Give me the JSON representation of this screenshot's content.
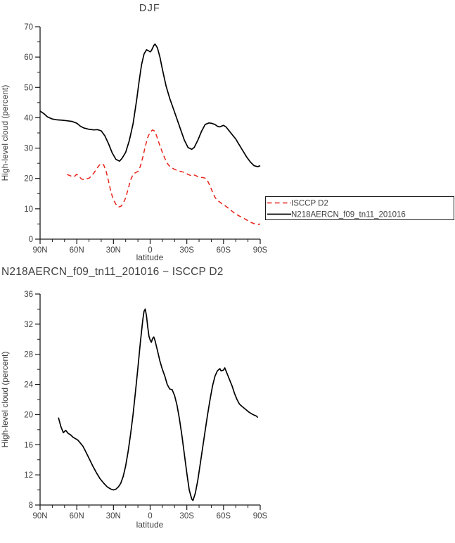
{
  "colors": {
    "text": "#3f3f3f",
    "axis": "#1a1a1a",
    "model_line": "#000000",
    "obs_line": "#e8231a"
  },
  "legend": {
    "entries": [
      "ISCCP D2",
      "N218AERCN_f09_tn11_201016"
    ],
    "position": "right-outside"
  },
  "chart_data": [
    {
      "type": "line",
      "title": "DJF",
      "xlabel": "latitude",
      "ylabel": "High-level cloud (percent)",
      "ylim": [
        0,
        70
      ],
      "yticks": [
        0,
        10,
        20,
        30,
        40,
        50,
        60,
        70
      ],
      "xlim": [
        90,
        -90
      ],
      "xticks": [
        90,
        60,
        30,
        0,
        -30,
        -60,
        -90
      ],
      "xtick_labels": [
        "90N",
        "60N",
        "30N",
        "0",
        "30S",
        "60S",
        "90S"
      ],
      "grid": false,
      "legend_position": "right-outside",
      "series": [
        {
          "name": "ISCCP D2",
          "color": "#e8231a",
          "style": "dashed",
          "points": [
            [
              68,
              21.3
            ],
            [
              66,
              21.0
            ],
            [
              64,
              20.7
            ],
            [
              62,
              20.6
            ],
            [
              60,
              21.4
            ],
            [
              58,
              20.6
            ],
            [
              56,
              19.8
            ],
            [
              54,
              19.6
            ],
            [
              52,
              19.9
            ],
            [
              50,
              20.1
            ],
            [
              48,
              20.8
            ],
            [
              46,
              21.8
            ],
            [
              44,
              23.0
            ],
            [
              42,
              24.2
            ],
            [
              40,
              24.9
            ],
            [
              38,
              24.5
            ],
            [
              36,
              22.4
            ],
            [
              34,
              19.0
            ],
            [
              32,
              15.4
            ],
            [
              30,
              13.0
            ],
            [
              28,
              11.5
            ],
            [
              26,
              10.6
            ],
            [
              24,
              10.8
            ],
            [
              22,
              11.8
            ],
            [
              20,
              13.6
            ],
            [
              18,
              16.5
            ],
            [
              16,
              19.5
            ],
            [
              14,
              21.3
            ],
            [
              12,
              21.9
            ],
            [
              10,
              22.3
            ],
            [
              8,
              24.0
            ],
            [
              6,
              27.0
            ],
            [
              4,
              30.5
            ],
            [
              2,
              33.5
            ],
            [
              0,
              35.3
            ],
            [
              -2,
              36.0
            ],
            [
              -4,
              35.5
            ],
            [
              -6,
              33.2
            ],
            [
              -8,
              30.8
            ],
            [
              -10,
              28.6
            ],
            [
              -12,
              26.6
            ],
            [
              -14,
              25.0
            ],
            [
              -16,
              24.0
            ],
            [
              -18,
              23.4
            ],
            [
              -20,
              23.0
            ],
            [
              -23,
              22.5
            ],
            [
              -26,
              22.2
            ],
            [
              -29,
              21.9
            ],
            [
              -31,
              21.3
            ],
            [
              -33,
              21.0
            ],
            [
              -35,
              21.3
            ],
            [
              -37,
              21.0
            ],
            [
              -39,
              20.6
            ],
            [
              -41,
              20.3
            ],
            [
              -43,
              20.3
            ],
            [
              -45,
              20.1
            ],
            [
              -47,
              19.2
            ],
            [
              -49,
              17.5
            ],
            [
              -51,
              15.5
            ],
            [
              -53,
              13.8
            ],
            [
              -55,
              12.8
            ],
            [
              -57,
              12.2
            ],
            [
              -59,
              11.6
            ],
            [
              -61,
              11.1
            ],
            [
              -64,
              10.2
            ],
            [
              -67,
              9.2
            ],
            [
              -70,
              8.3
            ],
            [
              -73,
              7.6
            ],
            [
              -76,
              7.0
            ],
            [
              -79,
              6.3
            ],
            [
              -82,
              5.6
            ],
            [
              -85,
              5.1
            ],
            [
              -88,
              4.8
            ],
            [
              -90,
              5.0
            ]
          ]
        },
        {
          "name": "N218AERCN_f09_tn11_201016",
          "color": "#000000",
          "style": "solid",
          "points": [
            [
              90,
              42.2
            ],
            [
              87,
              41.4
            ],
            [
              84,
              40.3
            ],
            [
              80,
              39.6
            ],
            [
              76,
              39.3
            ],
            [
              72,
              39.2
            ],
            [
              68,
              39.0
            ],
            [
              64,
              38.8
            ],
            [
              60,
              38.2
            ],
            [
              57,
              37.2
            ],
            [
              54,
              36.6
            ],
            [
              50,
              36.2
            ],
            [
              46,
              36.0
            ],
            [
              43,
              36.1
            ],
            [
              40,
              35.7
            ],
            [
              37,
              34.0
            ],
            [
              34,
              31.4
            ],
            [
              31,
              28.4
            ],
            [
              28,
              26.3
            ],
            [
              25,
              25.7
            ],
            [
              23,
              26.6
            ],
            [
              20,
              28.6
            ],
            [
              17,
              32.5
            ],
            [
              14,
              38.0
            ],
            [
              11,
              46.0
            ],
            [
              9,
              52.0
            ],
            [
              7,
              57.5
            ],
            [
              5,
              61.0
            ],
            [
              3,
              62.4
            ],
            [
              1,
              62.0
            ],
            [
              0,
              61.7
            ],
            [
              -1,
              62.1
            ],
            [
              -3,
              63.8
            ],
            [
              -4,
              64.3
            ],
            [
              -6,
              63.0
            ],
            [
              -8,
              60.0
            ],
            [
              -10,
              56.0
            ],
            [
              -13,
              50.5
            ],
            [
              -16,
              46.4
            ],
            [
              -19,
              43.0
            ],
            [
              -22,
              39.5
            ],
            [
              -25,
              36.0
            ],
            [
              -28,
              32.6
            ],
            [
              -31,
              30.2
            ],
            [
              -34,
              29.6
            ],
            [
              -36,
              30.2
            ],
            [
              -39,
              32.6
            ],
            [
              -42,
              35.5
            ],
            [
              -45,
              37.8
            ],
            [
              -48,
              38.3
            ],
            [
              -50,
              38.2
            ],
            [
              -53,
              37.8
            ],
            [
              -55,
              37.2
            ],
            [
              -57,
              37.0
            ],
            [
              -60,
              37.5
            ],
            [
              -62,
              37.0
            ],
            [
              -64,
              36.0
            ],
            [
              -67,
              34.5
            ],
            [
              -70,
              33.0
            ],
            [
              -73,
              31.0
            ],
            [
              -76,
              29.0
            ],
            [
              -79,
              27.0
            ],
            [
              -82,
              25.4
            ],
            [
              -85,
              24.2
            ],
            [
              -88,
              23.9
            ],
            [
              -90,
              24.2
            ]
          ]
        }
      ]
    },
    {
      "type": "line",
      "title": "N218AERCN_f09_tn11_201016 − ISCCP D2",
      "xlabel": "latitude",
      "ylabel": "High-level cloud (percent)",
      "ylim": [
        8,
        36
      ],
      "yticks": [
        8,
        12,
        16,
        20,
        24,
        28,
        32,
        36
      ],
      "xlim": [
        90,
        -90
      ],
      "xticks": [
        90,
        60,
        30,
        0,
        -30,
        -60,
        -90
      ],
      "xtick_labels": [
        "90N",
        "60N",
        "30N",
        "0",
        "30S",
        "60S",
        "90S"
      ],
      "grid": false,
      "series": [
        {
          "name": "N218AERCN_f09_tn11_201016 − ISCCP D2",
          "color": "#000000",
          "style": "solid",
          "points": [
            [
              75,
              19.6
            ],
            [
              73,
              18.4
            ],
            [
              71,
              17.6
            ],
            [
              69,
              17.9
            ],
            [
              67,
              17.5
            ],
            [
              65,
              17.3
            ],
            [
              63,
              17.0
            ],
            [
              61,
              16.8
            ],
            [
              59,
              16.6
            ],
            [
              57,
              16.2
            ],
            [
              55,
              15.8
            ],
            [
              53,
              15.2
            ],
            [
              50,
              14.2
            ],
            [
              47,
              13.2
            ],
            [
              44,
              12.3
            ],
            [
              41,
              11.5
            ],
            [
              38,
              10.9
            ],
            [
              35,
              10.4
            ],
            [
              32,
              10.1
            ],
            [
              30,
              10.0
            ],
            [
              28,
              10.1
            ],
            [
              26,
              10.4
            ],
            [
              24,
              10.9
            ],
            [
              22,
              11.8
            ],
            [
              20,
              13.2
            ],
            [
              18,
              15.1
            ],
            [
              16,
              17.4
            ],
            [
              14,
              20.0
            ],
            [
              12,
              23.0
            ],
            [
              10,
              26.2
            ],
            [
              8,
              29.6
            ],
            [
              6,
              32.6
            ],
            [
              5,
              33.7
            ],
            [
              4,
              34.0
            ],
            [
              3,
              33.1
            ],
            [
              2,
              31.7
            ],
            [
              1,
              30.4
            ],
            [
              0,
              29.9
            ],
            [
              -1,
              29.6
            ],
            [
              -2,
              30.1
            ],
            [
              -3,
              30.3
            ],
            [
              -4,
              29.8
            ],
            [
              -6,
              28.5
            ],
            [
              -8,
              27.1
            ],
            [
              -10,
              26.0
            ],
            [
              -12,
              25.1
            ],
            [
              -14,
              24.0
            ],
            [
              -16,
              23.4
            ],
            [
              -18,
              23.3
            ],
            [
              -20,
              22.5
            ],
            [
              -22,
              21.2
            ],
            [
              -24,
              19.4
            ],
            [
              -26,
              17.2
            ],
            [
              -28,
              14.7
            ],
            [
              -30,
              12.2
            ],
            [
              -32,
              10.0
            ],
            [
              -34,
              8.8
            ],
            [
              -35,
              8.6
            ],
            [
              -37,
              9.6
            ],
            [
              -39,
              11.3
            ],
            [
              -41,
              13.5
            ],
            [
              -43,
              15.7
            ],
            [
              -45,
              17.9
            ],
            [
              -47,
              20.0
            ],
            [
              -49,
              22.0
            ],
            [
              -51,
              23.8
            ],
            [
              -53,
              25.1
            ],
            [
              -55,
              25.8
            ],
            [
              -57,
              26.1
            ],
            [
              -58,
              25.8
            ],
            [
              -60,
              25.9
            ],
            [
              -61,
              26.2
            ],
            [
              -63,
              25.4
            ],
            [
              -65,
              24.6
            ],
            [
              -67,
              23.8
            ],
            [
              -69,
              22.8
            ],
            [
              -71,
              22.0
            ],
            [
              -73,
              21.4
            ],
            [
              -75,
              21.1
            ],
            [
              -78,
              20.7
            ],
            [
              -81,
              20.3
            ],
            [
              -84,
              20.0
            ],
            [
              -87,
              19.8
            ],
            [
              -88,
              19.6
            ]
          ]
        }
      ]
    }
  ]
}
